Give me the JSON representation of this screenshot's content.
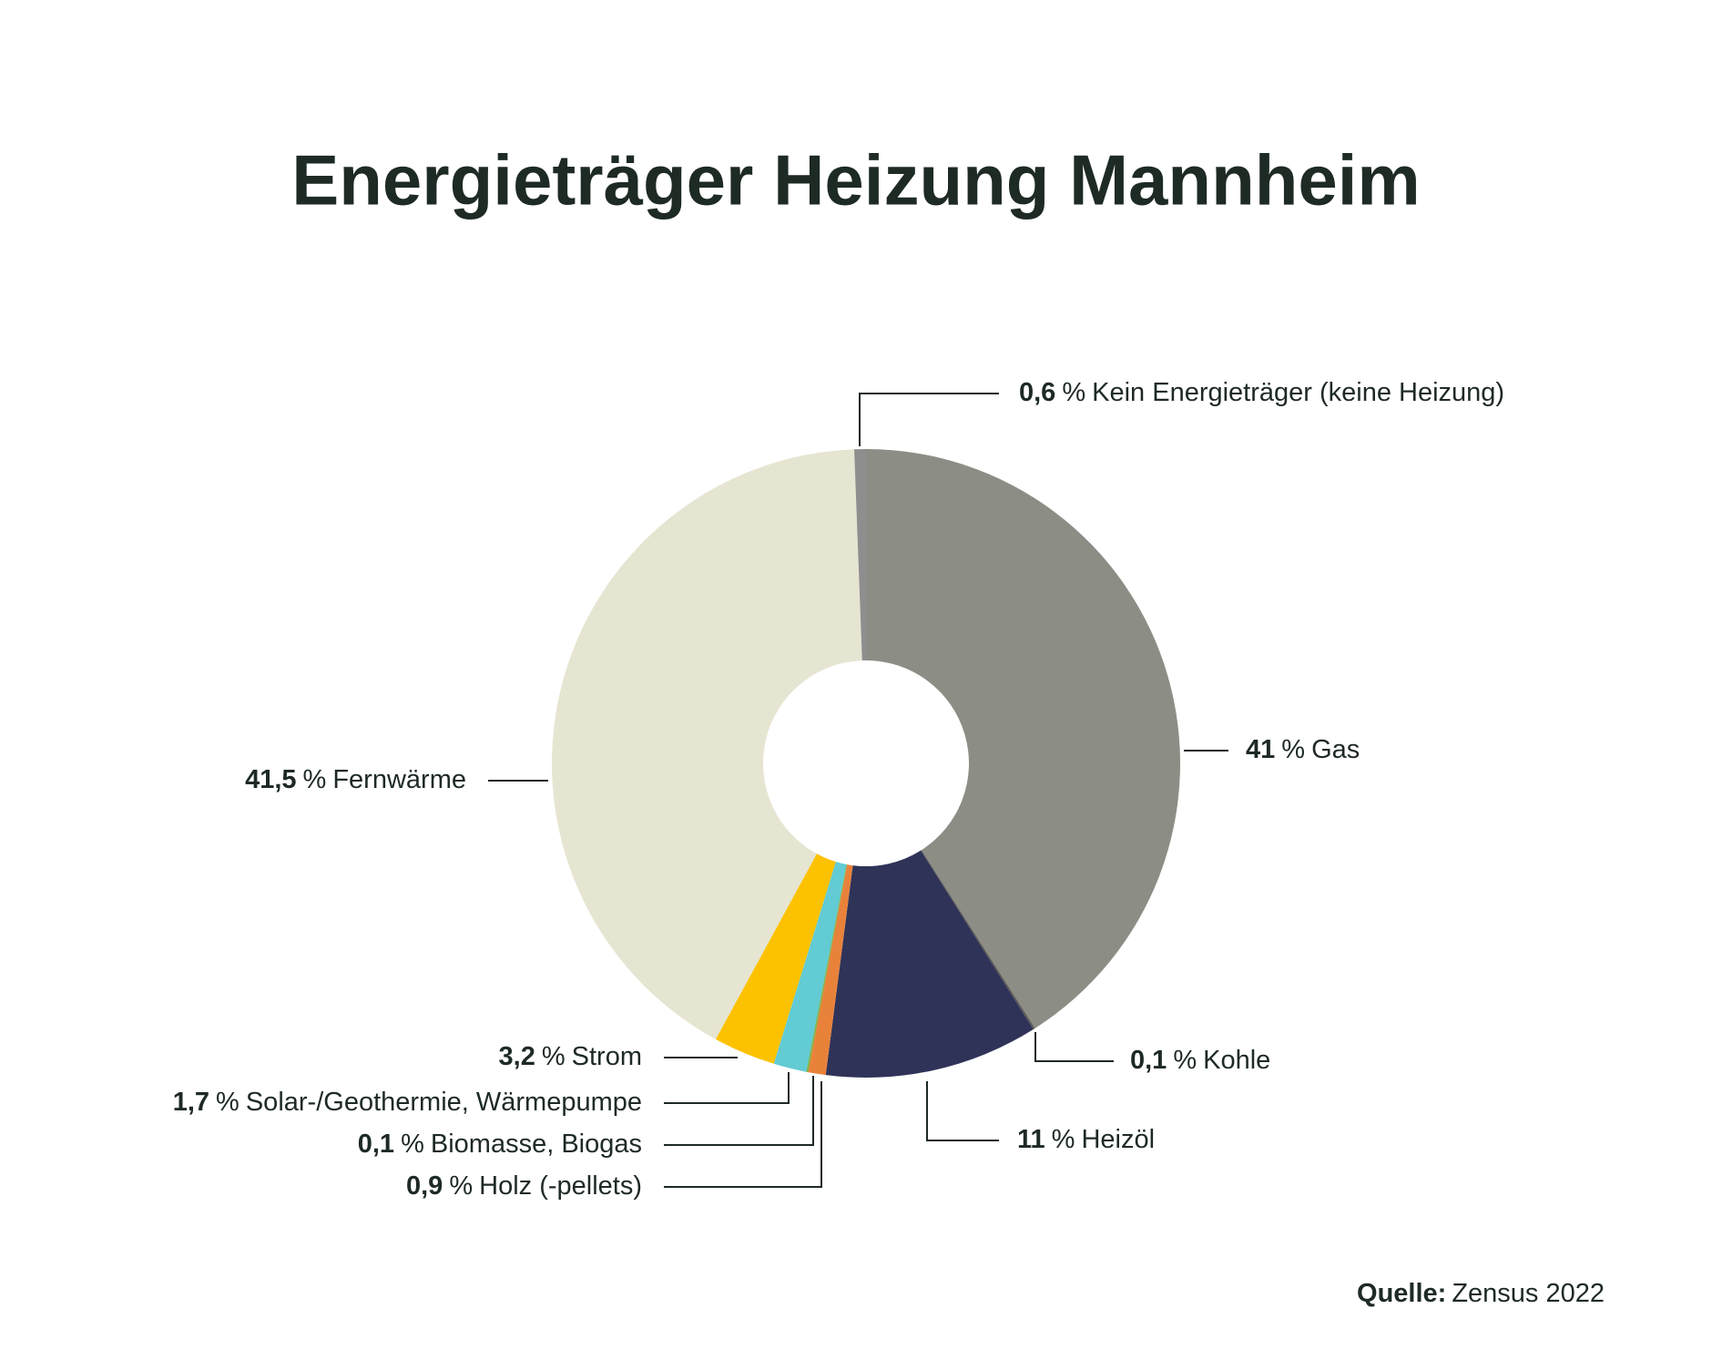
{
  "chart_data": {
    "type": "donut",
    "title": "Energieträger Heizung Mannheim",
    "categories": [
      "Gas",
      "Kohle",
      "Heizöl",
      "Holz (-pellets)",
      "Biomasse, Biogas",
      "Solar-/Geothermie, Wärmepumpe",
      "Strom",
      "Fernwärme",
      "Kein Energieträger (keine Heizung)"
    ],
    "values": [
      41,
      0.1,
      11,
      0.9,
      0.1,
      1.7,
      3.2,
      41.5,
      0.6
    ],
    "value_labels": [
      "41",
      "0,1",
      "11",
      "0,9",
      "0,1",
      "1,7",
      "3,2",
      "41,5",
      "0,6"
    ],
    "unit": "%",
    "colors": [
      "#8c8d84",
      "#5c5a55",
      "#2f3358",
      "#e8823a",
      "#7fb34a",
      "#62cbd3",
      "#fcc200",
      "#e6e5d2",
      "#8e8e8e"
    ],
    "source_label": "Quelle:",
    "source": "Zensus 2022"
  }
}
